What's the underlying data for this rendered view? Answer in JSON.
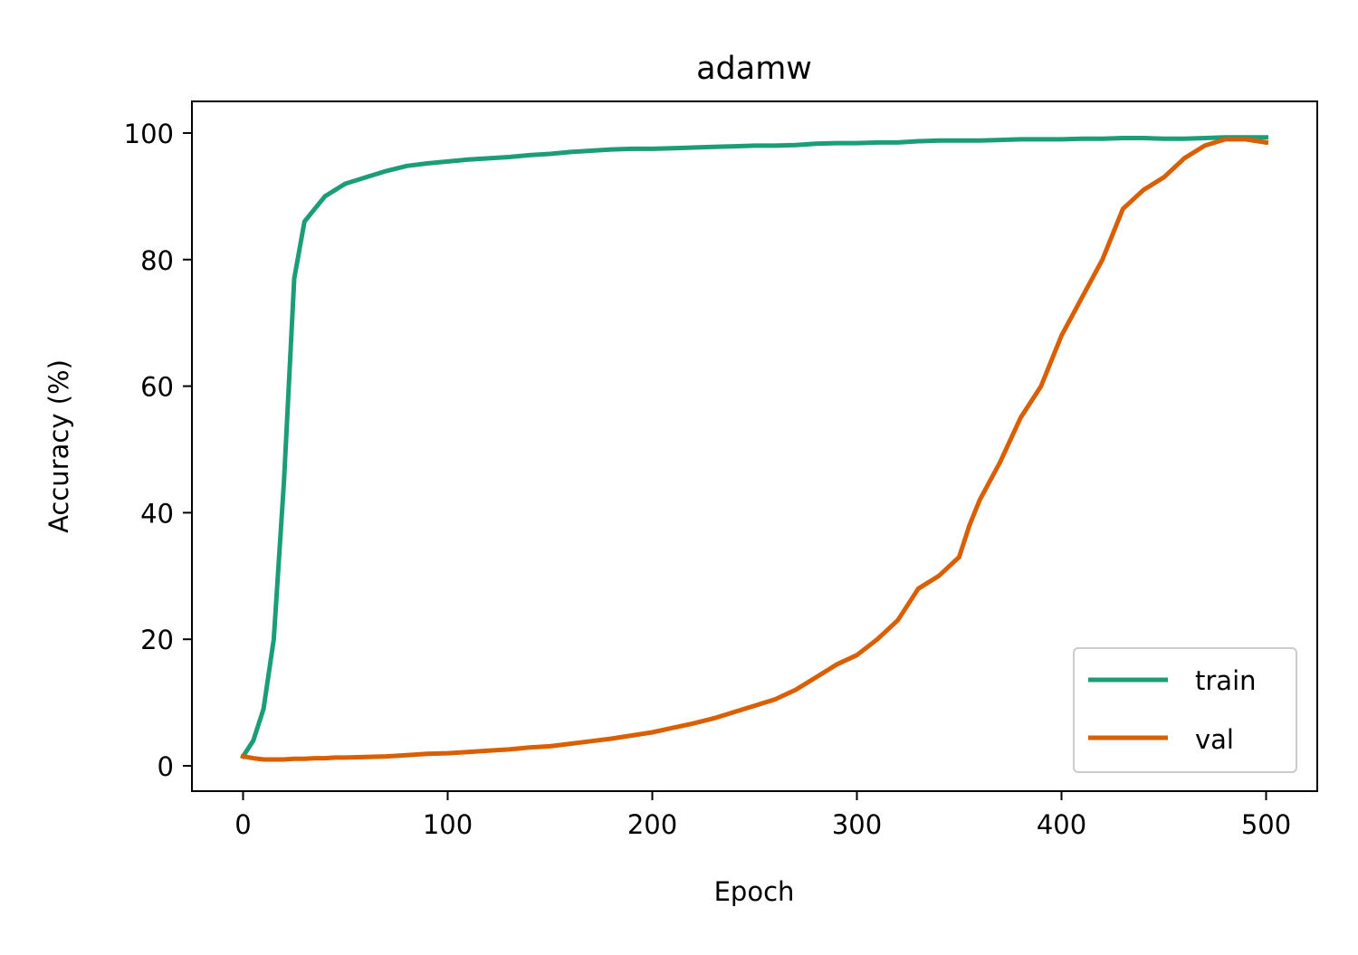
{
  "chart_data": {
    "type": "line",
    "title": "adamw",
    "xlabel": "Epoch",
    "ylabel": "Accuracy (%)",
    "xlim": [
      -25,
      525
    ],
    "ylim": [
      -4,
      105
    ],
    "xticks": [
      0,
      100,
      200,
      300,
      400,
      500
    ],
    "yticks": [
      0,
      20,
      40,
      60,
      80,
      100
    ],
    "grid": false,
    "legend_position": "lower-right",
    "x": [
      0,
      5,
      10,
      15,
      20,
      25,
      30,
      35,
      40,
      45,
      50,
      60,
      70,
      80,
      90,
      100,
      110,
      120,
      130,
      140,
      150,
      160,
      170,
      180,
      190,
      200,
      210,
      220,
      230,
      240,
      250,
      260,
      270,
      280,
      290,
      300,
      310,
      320,
      330,
      340,
      350,
      355,
      360,
      370,
      380,
      390,
      400,
      410,
      420,
      430,
      440,
      450,
      460,
      470,
      480,
      490,
      500
    ],
    "series": [
      {
        "name": "train",
        "color": "#1b9e77",
        "values": [
          1.5,
          4,
          9,
          20,
          45,
          77,
          86,
          88,
          90,
          91,
          92,
          93,
          94,
          94.8,
          95.2,
          95.5,
          95.8,
          96,
          96.2,
          96.5,
          96.7,
          97,
          97.2,
          97.4,
          97.5,
          97.5,
          97.6,
          97.7,
          97.8,
          97.9,
          98,
          98,
          98.1,
          98.3,
          98.4,
          98.4,
          98.5,
          98.5,
          98.7,
          98.8,
          98.8,
          98.8,
          98.8,
          98.9,
          99,
          99,
          99,
          99.1,
          99.1,
          99.2,
          99.2,
          99.1,
          99.1,
          99.2,
          99.3,
          99.3,
          99.3
        ]
      },
      {
        "name": "val",
        "color": "#d95f02",
        "values": [
          1.5,
          1.2,
          1.0,
          1.0,
          1.0,
          1.1,
          1.1,
          1.2,
          1.2,
          1.3,
          1.3,
          1.4,
          1.5,
          1.7,
          1.9,
          2.0,
          2.2,
          2.4,
          2.6,
          2.9,
          3.1,
          3.5,
          3.9,
          4.3,
          4.8,
          5.3,
          6.0,
          6.7,
          7.5,
          8.5,
          9.5,
          10.5,
          12,
          14,
          16,
          17.5,
          20,
          23,
          28,
          30,
          33,
          38,
          42,
          48,
          55,
          60,
          68,
          74,
          80,
          88,
          91,
          93,
          96,
          98,
          99,
          99,
          98.5
        ]
      }
    ]
  }
}
